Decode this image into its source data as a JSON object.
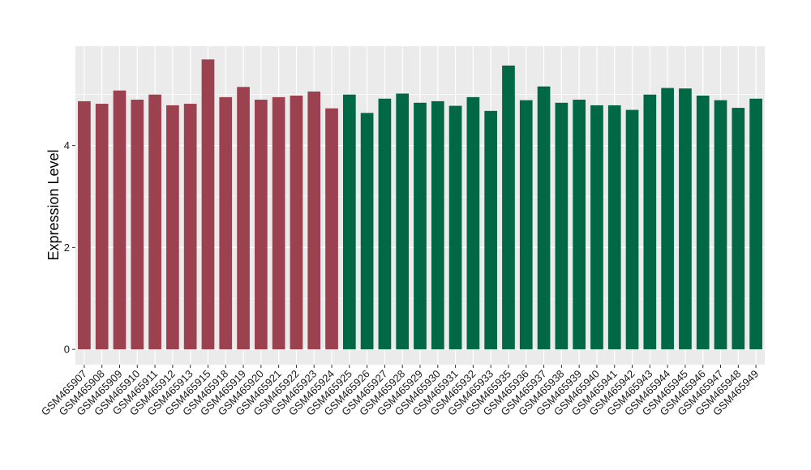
{
  "chart_data": {
    "type": "bar",
    "ylabel": "Expression Level",
    "xlabel": "",
    "title": "",
    "ylim": [
      -0.3,
      5.95
    ],
    "y_ticks": [
      0,
      2,
      4
    ],
    "grid": true,
    "legend": "none",
    "colors": {
      "group1": "#9B4150",
      "group2": "#006845",
      "panel_bg": "#EBEBEB",
      "grid": "#FFFFFF"
    },
    "categories": [
      "GSM465907",
      "GSM465908",
      "GSM465909",
      "GSM465910",
      "GSM465911",
      "GSM465912",
      "GSM465913",
      "GSM465915",
      "GSM465918",
      "GSM465919",
      "GSM465920",
      "GSM465921",
      "GSM465922",
      "GSM465923",
      "GSM465924",
      "GSM465925",
      "GSM465926",
      "GSM465927",
      "GSM465928",
      "GSM465929",
      "GSM465930",
      "GSM465931",
      "GSM465932",
      "GSM465933",
      "GSM465935",
      "GSM465936",
      "GSM465937",
      "GSM465938",
      "GSM465939",
      "GSM465940",
      "GSM465941",
      "GSM465942",
      "GSM465943",
      "GSM465944",
      "GSM465945",
      "GSM465946",
      "GSM465947",
      "GSM465948",
      "GSM465949"
    ],
    "values": [
      4.87,
      4.82,
      5.08,
      4.9,
      5.0,
      4.79,
      4.82,
      5.69,
      4.95,
      5.15,
      4.9,
      4.95,
      4.98,
      5.06,
      4.73,
      5.0,
      4.64,
      4.92,
      5.02,
      4.84,
      4.87,
      4.78,
      4.95,
      4.68,
      5.57,
      4.89,
      5.16,
      4.84,
      4.9,
      4.79,
      4.79,
      4.7,
      5.0,
      5.13,
      5.12,
      4.98,
      4.89,
      4.74,
      4.92
    ],
    "groups": [
      1,
      1,
      1,
      1,
      1,
      1,
      1,
      1,
      1,
      1,
      1,
      1,
      1,
      1,
      1,
      2,
      2,
      2,
      2,
      2,
      2,
      2,
      2,
      2,
      2,
      2,
      2,
      2,
      2,
      2,
      2,
      2,
      2,
      2,
      2,
      2,
      2,
      2,
      2
    ]
  }
}
